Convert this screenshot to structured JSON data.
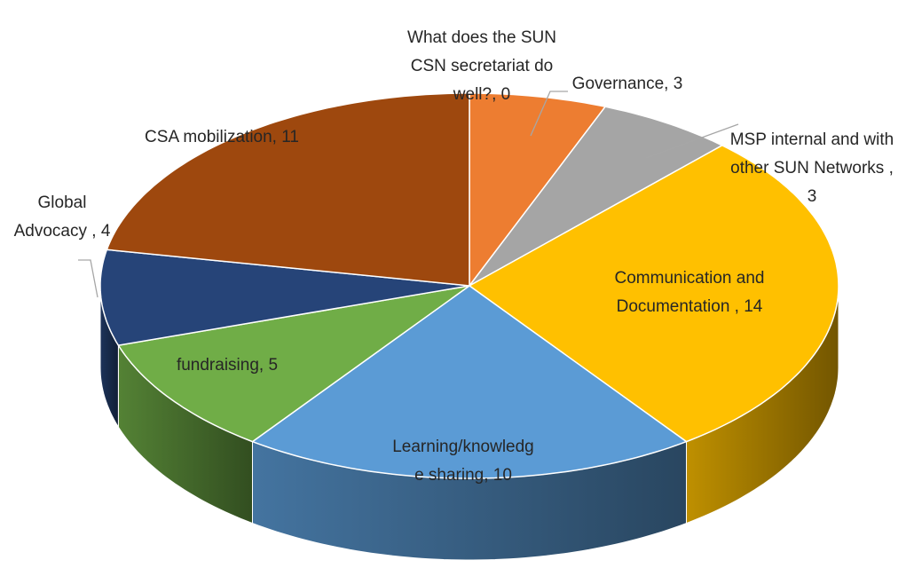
{
  "chart_data": {
    "type": "pie3d",
    "labels": [
      "What does the SUN CSN secretariat do well?, 0",
      "Governance, 3",
      "MSP internal and with other SUN Networks , 3",
      "Communication and Documentation , 14",
      "Learning/knowledge sharing, 10",
      "fundraising, 5",
      "Global Advocacy , 4",
      "CSA mobilization, 11"
    ],
    "values": [
      0,
      3,
      3,
      14,
      10,
      5,
      4,
      11
    ],
    "colors": [
      "#4472C4",
      "#ED7D31",
      "#A5A5A5",
      "#FFC000",
      "#5B9BD5",
      "#70AD47",
      "#264478",
      "#9E480E"
    ]
  }
}
